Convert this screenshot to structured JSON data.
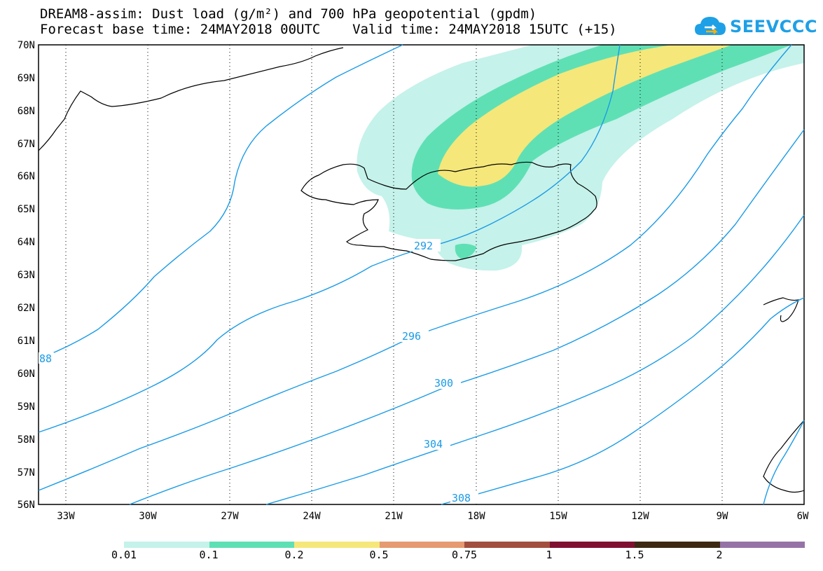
{
  "header": {
    "title_line1": "DREAM8-assim: Dust load (g/m²) and 700 hPa geopotential (gpdm)",
    "title_line2": "Forecast base time: 24MAY2018 00UTC    Valid time: 24MAY2018 15UTC (+15)",
    "logo_text": "SEEVCCC"
  },
  "map": {
    "lat_labels": [
      "70N",
      "69N",
      "68N",
      "67N",
      "66N",
      "65N",
      "64N",
      "63N",
      "62N",
      "61N",
      "60N",
      "59N",
      "58N",
      "57N",
      "56N"
    ],
    "lon_labels": [
      "33W",
      "30W",
      "27W",
      "24W",
      "21W",
      "18W",
      "15W",
      "12W",
      "9W",
      "6W"
    ],
    "contour_labels": [
      "88",
      "292",
      "296",
      "300",
      "304",
      "308"
    ],
    "contour_color": "#1a9be6",
    "dust_colors": {
      "0.01": "#c5f2ea",
      "0.1": "#5fe0b4",
      "0.2": "#f5e77a"
    }
  },
  "colorbar": {
    "ticks": [
      "0.01",
      "0.1",
      "0.2",
      "0.5",
      "0.75",
      "1",
      "1.5",
      "2"
    ],
    "colors": [
      "#c5f2ea",
      "#5fe0b4",
      "#f5e77a",
      "#e59a71",
      "#a24f3f",
      "#7f0f31",
      "#3d2813",
      "#9673a6"
    ]
  }
}
